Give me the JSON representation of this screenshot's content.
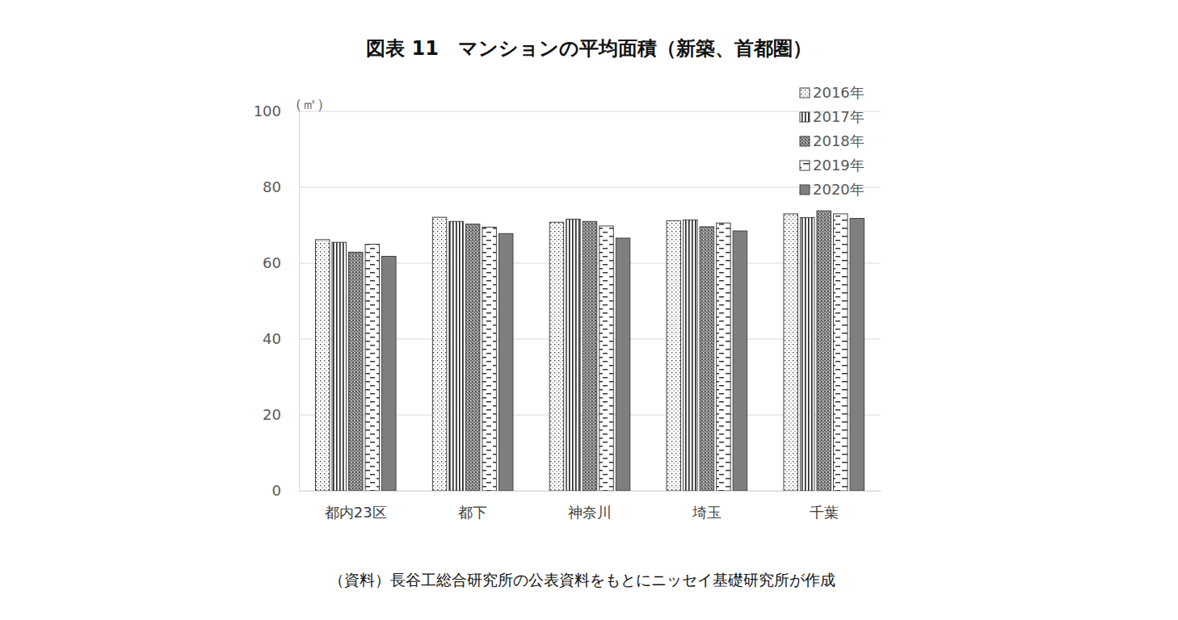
{
  "chart_data": {
    "type": "bar",
    "title": "図表 11　マンションの平均面積（新築、首都圏）",
    "y_label": "（㎡）",
    "note": "（資料）長谷工総合研究所の公表資料をもとにニッセイ基礎研究所が作成",
    "categories": [
      "都内23区",
      "都下",
      "神奈川",
      "埼玉",
      "千葉"
    ],
    "series": [
      {
        "name": "2016年",
        "color": "#ffffff",
        "values": [
          66.2,
          72.1,
          70.8,
          71.2,
          73.0
        ]
      },
      {
        "name": "2017年",
        "color": "#ffffff",
        "values": [
          65.5,
          71.0,
          71.6,
          71.4,
          72.0
        ]
      },
      {
        "name": "2018年",
        "color": "#a0a0a0",
        "values": [
          62.9,
          70.3,
          71.0,
          69.6,
          73.8
        ]
      },
      {
        "name": "2019年",
        "color": "#ffffff",
        "values": [
          65.0,
          69.5,
          69.8,
          70.6,
          73.0
        ]
      },
      {
        "name": "2020年",
        "color": "#7f7f7f",
        "values": [
          61.8,
          67.8,
          66.6,
          68.5,
          71.8
        ]
      }
    ],
    "ylim": [
      0,
      100
    ],
    "yticks": [
      0,
      20,
      40,
      60,
      80,
      100
    ],
    "grid": true,
    "legend": "top-right"
  }
}
